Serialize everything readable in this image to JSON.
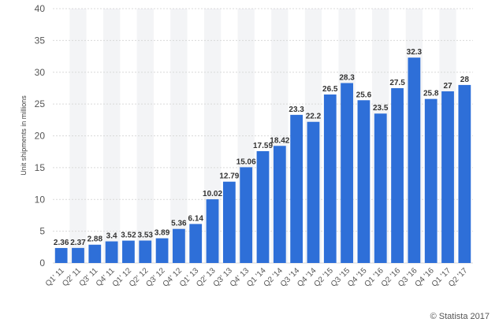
{
  "chart_data": {
    "type": "bar",
    "title": "",
    "xlabel": "",
    "ylabel": "Unit shipments in millions",
    "ylim": [
      0,
      40
    ],
    "yticks": [
      0,
      5,
      10,
      15,
      20,
      25,
      30,
      35,
      40
    ],
    "grid": true,
    "categories": [
      "Q1' 11",
      "Q2' 11",
      "Q3' 11",
      "Q4' 11",
      "Q1' 12",
      "Q2' 12",
      "Q3' 12",
      "Q4' 12",
      "Q1' 13",
      "Q2' 13",
      "Q3' 13",
      "Q4' 13",
      "Q1 '14",
      "Q2 '14",
      "Q3 '14",
      "Q4 '14",
      "Q2 '15",
      "Q3 '15",
      "Q4 '15",
      "Q1 '16",
      "Q2 '16",
      "Q3 '16",
      "Q4 '16",
      "Q1 '17",
      "Q2 '17"
    ],
    "values": [
      2.36,
      2.37,
      2.88,
      3.4,
      3.52,
      3.53,
      3.89,
      5.36,
      6.14,
      10.02,
      12.79,
      15.06,
      17.59,
      18.42,
      23.3,
      22.2,
      26.5,
      28.3,
      25.6,
      23.5,
      27.5,
      32.3,
      25.8,
      27,
      28
    ],
    "data_labels": [
      "2.36",
      "2.37",
      "2.88",
      "3.4",
      "3.52",
      "3.53",
      "3.89",
      "5.36",
      "6.14",
      "10.02",
      "12.79",
      "15.06",
      "17.59",
      "18.42",
      "23.3",
      "22.2",
      "26.5",
      "28.3",
      "25.6",
      "23.5",
      "27.5",
      "32.3",
      "25.8",
      "27",
      "28"
    ],
    "bar_color": "#2e6fd8",
    "band_color": "#f3f4f6",
    "grid_color": "#d9d9d9"
  },
  "footer": {
    "credit": "© Statista 2017"
  }
}
